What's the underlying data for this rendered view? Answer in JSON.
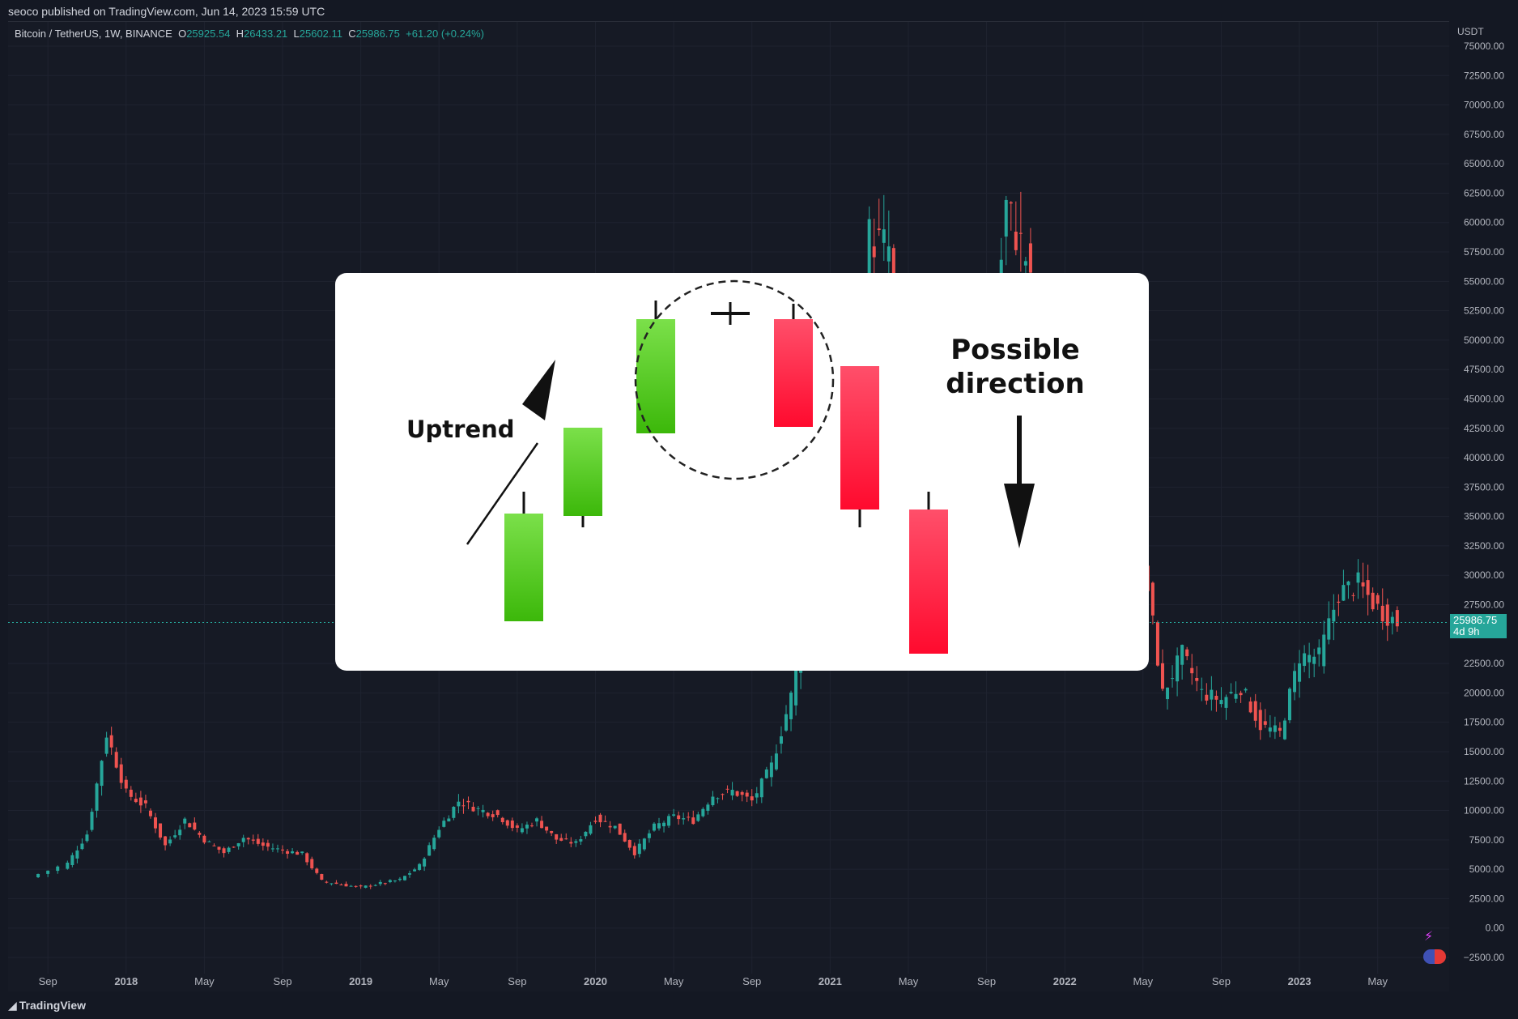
{
  "header": {
    "published": "seoco published on TradingView.com, Jun 14, 2023 15:59 UTC"
  },
  "legend": {
    "symbol": "Bitcoin / TetherUS, 1W, BINANCE",
    "o_key": "O",
    "o_val": "25925.54",
    "h_key": "H",
    "h_val": "26433.21",
    "l_key": "L",
    "l_val": "25602.11",
    "c_key": "C",
    "c_val": "25986.75",
    "change": "+61.20 (+0.24%)"
  },
  "price_tag": {
    "price": "25986.75",
    "countdown": "4d 9h"
  },
  "footer": {
    "logo": "TradingView"
  },
  "overlay": {
    "uptrend": "Uptrend",
    "possible_line1": "Possible",
    "possible_line2": "direction"
  },
  "colors": {
    "up": "#26a69a",
    "down": "#ef5350",
    "background": "#161a25",
    "grid": "#1f2330",
    "axis_text": "#b2b5be"
  },
  "chart_data": {
    "type": "candlestick",
    "title": "Bitcoin / TetherUS, 1W, BINANCE",
    "currency": "USDT",
    "ylim": [
      -2500,
      75000
    ],
    "y_ticks": [
      "75000.00",
      "72500.00",
      "70000.00",
      "67500.00",
      "65000.00",
      "62500.00",
      "60000.00",
      "57500.00",
      "55000.00",
      "52500.00",
      "50000.00",
      "47500.00",
      "45000.00",
      "42500.00",
      "40000.00",
      "37500.00",
      "35000.00",
      "32500.00",
      "30000.00",
      "27500.00",
      "22500.00",
      "20000.00",
      "17500.00",
      "15000.00",
      "12500.00",
      "10000.00",
      "7500.00",
      "5000.00",
      "2500.00",
      "0.00",
      "−2500.00"
    ],
    "x_ticks": [
      "Sep",
      "2018",
      "May",
      "Sep",
      "2019",
      "May",
      "Sep",
      "2020",
      "May",
      "Sep",
      "2021",
      "May",
      "Sep",
      "2022",
      "May",
      "Sep",
      "2023",
      "May"
    ],
    "last_price": 25986.75,
    "series": [
      {
        "name": "",
        "points": [
          [
            "2017-08",
            4300
          ],
          [
            "2017-10",
            5500
          ],
          [
            "2017-11",
            8000
          ],
          [
            "2017-12",
            16500
          ],
          [
            "2018-01",
            11500
          ],
          [
            "2018-02",
            10300
          ],
          [
            "2018-03",
            7000
          ],
          [
            "2018-04",
            9200
          ],
          [
            "2018-05",
            7500
          ],
          [
            "2018-06",
            6400
          ],
          [
            "2018-07",
            7700
          ],
          [
            "2018-08",
            7000
          ],
          [
            "2018-09",
            6600
          ],
          [
            "2018-10",
            6300
          ],
          [
            "2018-11",
            4000
          ],
          [
            "2018-12",
            3700
          ],
          [
            "2019-01",
            3450
          ],
          [
            "2019-02",
            3800
          ],
          [
            "2019-03",
            4100
          ],
          [
            "2019-04",
            5300
          ],
          [
            "2019-05",
            8500
          ],
          [
            "2019-06",
            10800
          ],
          [
            "2019-07",
            10100
          ],
          [
            "2019-08",
            9600
          ],
          [
            "2019-09",
            8300
          ],
          [
            "2019-10",
            9150
          ],
          [
            "2019-11",
            7550
          ],
          [
            "2019-12",
            7200
          ],
          [
            "2020-01",
            9350
          ],
          [
            "2020-02",
            8600
          ],
          [
            "2020-03",
            6400
          ],
          [
            "2020-04",
            8600
          ],
          [
            "2020-05",
            9450
          ],
          [
            "2020-06",
            9150
          ],
          [
            "2020-07",
            11300
          ],
          [
            "2020-08",
            11650
          ],
          [
            "2020-09",
            10800
          ],
          [
            "2020-10",
            13800
          ],
          [
            "2020-11",
            19700
          ],
          [
            "2020-12",
            29000
          ],
          [
            "2021-01",
            33100
          ],
          [
            "2021-02",
            45100
          ],
          [
            "2021-03",
            58800
          ],
          [
            "2021-04",
            57700
          ],
          [
            "2021-05",
            37300
          ],
          [
            "2021-06",
            35000
          ],
          [
            "2021-07",
            41500
          ],
          [
            "2021-08",
            47100
          ],
          [
            "2021-09",
            43800
          ],
          [
            "2021-10",
            61300
          ],
          [
            "2021-11",
            57000
          ],
          [
            "2021-12",
            46300
          ],
          [
            "2022-01",
            38500
          ],
          [
            "2022-02",
            43200
          ],
          [
            "2022-03",
            45500
          ],
          [
            "2022-04",
            37700
          ],
          [
            "2022-05",
            31800
          ],
          [
            "2022-06",
            19900
          ],
          [
            "2022-07",
            23300
          ],
          [
            "2022-08",
            20000
          ],
          [
            "2022-09",
            19400
          ],
          [
            "2022-10",
            20500
          ],
          [
            "2022-11",
            17200
          ],
          [
            "2022-12",
            16550
          ],
          [
            "2023-01",
            23100
          ],
          [
            "2023-02",
            23100
          ],
          [
            "2023-03",
            28500
          ],
          [
            "2023-04",
            29250
          ],
          [
            "2023-05",
            27200
          ],
          [
            "2023-06",
            25987
          ]
        ]
      }
    ],
    "overlay_candles": [
      {
        "dir": "up"
      },
      {
        "dir": "up"
      },
      {
        "dir": "up"
      },
      {
        "dir": "down"
      },
      {
        "dir": "down"
      },
      {
        "dir": "down"
      }
    ]
  }
}
